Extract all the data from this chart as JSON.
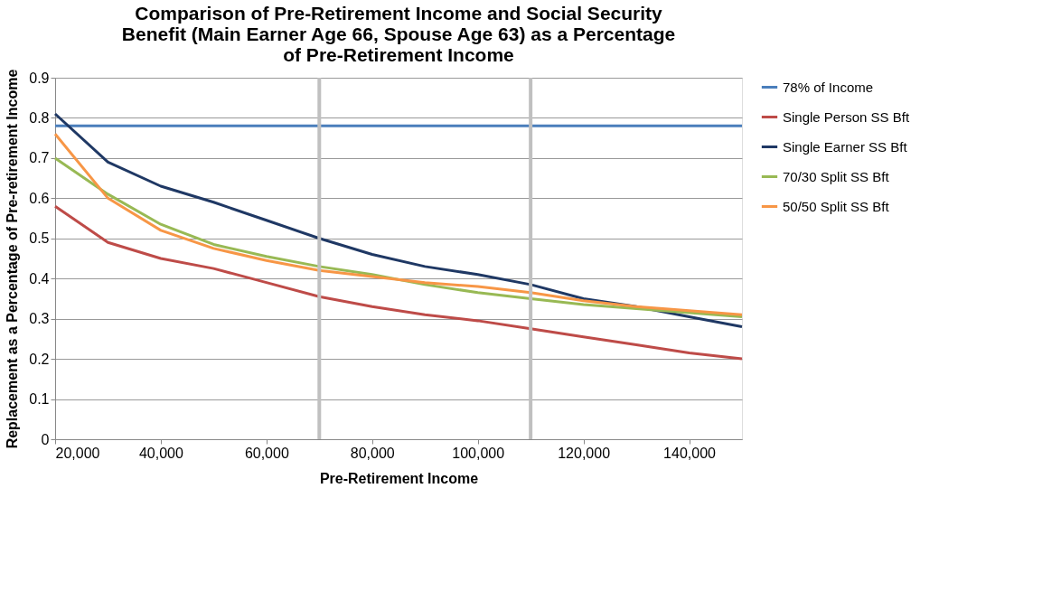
{
  "chart_data": {
    "type": "line",
    "title": "Comparison of Pre-Retirement Income and Social Security Benefit (Main Earner Age 66, Spouse Age 63) as a Percentage of Pre-Retirement Income",
    "xlabel": "Pre-Retirement Income",
    "ylabel": "Replacement as a Percentage of Pre-retirement Income",
    "x": [
      20000,
      30000,
      40000,
      50000,
      60000,
      70000,
      80000,
      90000,
      100000,
      110000,
      120000,
      130000,
      140000,
      150000
    ],
    "series": [
      {
        "name": "78% of Income",
        "color": "#4a7ebb",
        "values": [
          0.78,
          0.78,
          0.78,
          0.78,
          0.78,
          0.78,
          0.78,
          0.78,
          0.78,
          0.78,
          0.78,
          0.78,
          0.78,
          0.78
        ]
      },
      {
        "name": "Single Person SS Bft",
        "color": "#be4b48",
        "values": [
          0.58,
          0.49,
          0.45,
          0.425,
          0.39,
          0.355,
          0.33,
          0.31,
          0.295,
          0.275,
          0.255,
          0.235,
          0.215,
          0.2
        ]
      },
      {
        "name": "Single Earner SS Bft",
        "color": "#1f3864",
        "values": [
          0.81,
          0.69,
          0.63,
          0.59,
          0.545,
          0.5,
          0.46,
          0.43,
          0.41,
          0.385,
          0.35,
          0.33,
          0.305,
          0.28
        ]
      },
      {
        "name": "70/30 Split SS Bft",
        "color": "#98b954",
        "values": [
          0.7,
          0.61,
          0.535,
          0.485,
          0.455,
          0.43,
          0.41,
          0.385,
          0.365,
          0.35,
          0.335,
          0.325,
          0.315,
          0.305
        ]
      },
      {
        "name": "50/50 Split SS Bft",
        "color": "#f79646",
        "values": [
          0.76,
          0.6,
          0.52,
          0.475,
          0.445,
          0.42,
          0.405,
          0.39,
          0.38,
          0.365,
          0.345,
          0.33,
          0.32,
          0.31
        ]
      }
    ],
    "ref_lines": [
      {
        "axis": "x",
        "value": 70000,
        "color": "#c0c0c0"
      },
      {
        "axis": "x",
        "value": 110000,
        "color": "#c0c0c0"
      }
    ],
    "xlim": [
      20000,
      150000
    ],
    "xticks": [
      {
        "value": 20000,
        "label": "20,000"
      },
      {
        "value": 40000,
        "label": "40,000"
      },
      {
        "value": 60000,
        "label": "60,000"
      },
      {
        "value": 80000,
        "label": "80,000"
      },
      {
        "value": 100000,
        "label": "100,000"
      },
      {
        "value": 120000,
        "label": "120,000"
      },
      {
        "value": 140000,
        "label": "140,000"
      }
    ],
    "ylim": [
      0,
      0.9
    ],
    "yticks": [
      0,
      0.1,
      0.2,
      0.3,
      0.4,
      0.5,
      0.6,
      0.7,
      0.8,
      0.9
    ],
    "grid": "y",
    "legend": "right",
    "marker": "none",
    "line_style": "solid"
  }
}
